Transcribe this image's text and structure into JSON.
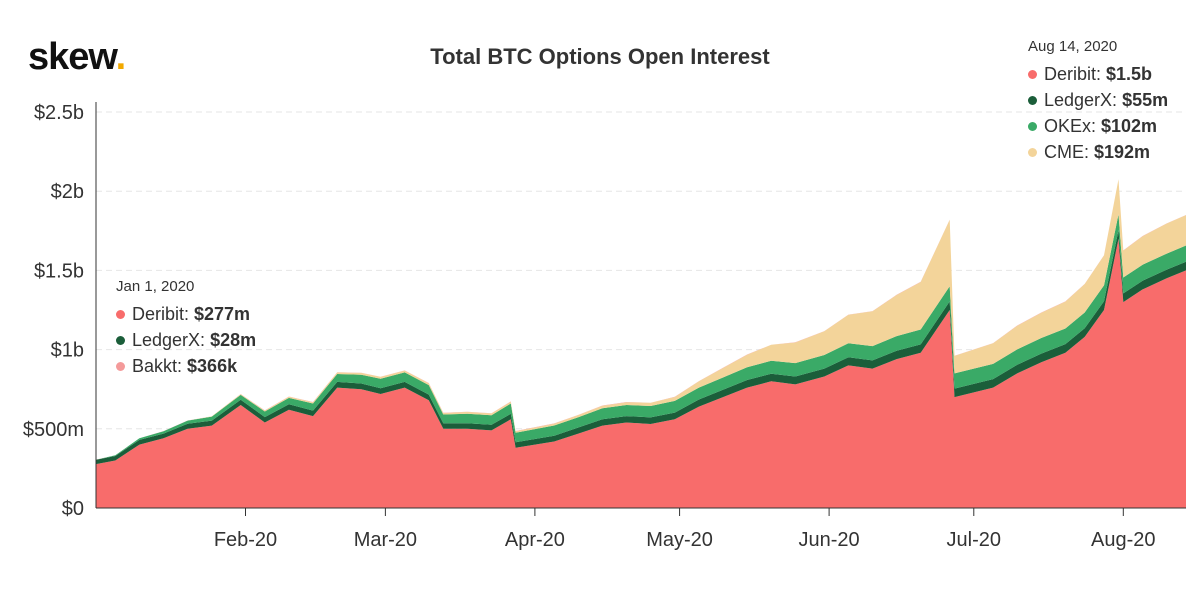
{
  "brand": {
    "name": "skew",
    "dot": "."
  },
  "chart_data": {
    "type": "area",
    "stacked": true,
    "title": "Total BTC Options Open Interest",
    "xlabel": "",
    "ylabel": "",
    "x_ticks": [
      "Feb-20",
      "Mar-20",
      "Apr-20",
      "May-20",
      "Jun-20",
      "Jul-20",
      "Aug-20"
    ],
    "x_tick_dates": [
      "2020-02-01",
      "2020-03-01",
      "2020-04-01",
      "2020-05-01",
      "2020-06-01",
      "2020-07-01",
      "2020-08-01"
    ],
    "x_range": [
      "2020-01-01",
      "2020-08-14"
    ],
    "y_ticks": [
      "$0",
      "$500m",
      "$1b",
      "$1.5b",
      "$2b",
      "$2.5b"
    ],
    "y_tick_values": [
      0,
      500,
      1000,
      1500,
      2000,
      2500
    ],
    "ylim": [
      0,
      2500
    ],
    "y_unit": "USD millions",
    "grid": true,
    "colors": {
      "Deribit": "#f86c6b",
      "LedgerX": "#1b5e3a",
      "OKEx": "#3aaa67",
      "CME": "#f3d49a",
      "Bakkt": "#f49a9a"
    },
    "x": [
      "2020-01-01",
      "2020-01-05",
      "2020-01-10",
      "2020-01-15",
      "2020-01-20",
      "2020-01-25",
      "2020-01-31",
      "2020-02-05",
      "2020-02-10",
      "2020-02-15",
      "2020-02-20",
      "2020-02-25",
      "2020-02-29",
      "2020-03-05",
      "2020-03-10",
      "2020-03-13",
      "2020-03-18",
      "2020-03-23",
      "2020-03-27",
      "2020-03-28",
      "2020-04-05",
      "2020-04-10",
      "2020-04-15",
      "2020-04-20",
      "2020-04-25",
      "2020-04-30",
      "2020-05-05",
      "2020-05-10",
      "2020-05-15",
      "2020-05-20",
      "2020-05-25",
      "2020-05-31",
      "2020-06-05",
      "2020-06-10",
      "2020-06-15",
      "2020-06-20",
      "2020-06-26",
      "2020-06-27",
      "2020-07-05",
      "2020-07-10",
      "2020-07-15",
      "2020-07-20",
      "2020-07-24",
      "2020-07-28",
      "2020-07-31",
      "2020-08-01",
      "2020-08-05",
      "2020-08-10",
      "2020-08-14"
    ],
    "series": [
      {
        "name": "Deribit",
        "values": [
          277,
          300,
          400,
          440,
          500,
          520,
          650,
          540,
          620,
          580,
          760,
          750,
          720,
          760,
          680,
          500,
          500,
          490,
          560,
          380,
          420,
          470,
          520,
          540,
          530,
          560,
          640,
          700,
          760,
          800,
          780,
          830,
          900,
          880,
          940,
          980,
          1250,
          700,
          760,
          850,
          920,
          980,
          1080,
          1250,
          1700,
          1300,
          1380,
          1450,
          1500
        ]
      },
      {
        "name": "LedgerX",
        "values": [
          28,
          28,
          30,
          30,
          32,
          32,
          34,
          34,
          35,
          35,
          36,
          36,
          36,
          36,
          36,
          35,
          35,
          35,
          35,
          35,
          36,
          38,
          40,
          40,
          42,
          42,
          45,
          46,
          48,
          48,
          50,
          50,
          52,
          52,
          53,
          53,
          54,
          54,
          54,
          54,
          55,
          55,
          55,
          55,
          55,
          55,
          55,
          55,
          55
        ]
      },
      {
        "name": "OKEx",
        "values": [
          0,
          5,
          10,
          15,
          20,
          25,
          30,
          35,
          40,
          45,
          50,
          55,
          60,
          60,
          60,
          55,
          60,
          60,
          65,
          60,
          65,
          65,
          70,
          70,
          72,
          74,
          75,
          78,
          80,
          82,
          85,
          86,
          88,
          90,
          92,
          94,
          96,
          96,
          96,
          97,
          98,
          98,
          99,
          100,
          100,
          100,
          101,
          101,
          102
        ]
      },
      {
        "name": "CME",
        "values": [
          0,
          0,
          0,
          0,
          0,
          2,
          5,
          6,
          8,
          8,
          10,
          12,
          12,
          12,
          12,
          10,
          12,
          12,
          12,
          10,
          12,
          14,
          16,
          18,
          20,
          25,
          40,
          60,
          80,
          100,
          130,
          150,
          180,
          220,
          260,
          300,
          420,
          110,
          130,
          150,
          160,
          170,
          180,
          190,
          220,
          170,
          180,
          190,
          192
        ]
      },
      {
        "name": "Bakkt",
        "values": [
          0.366,
          0.4,
          0.5,
          0.6,
          0.7,
          0.8,
          1,
          1,
          1,
          1,
          1,
          1,
          1,
          1,
          1,
          1,
          1,
          1,
          1,
          1,
          1,
          1,
          1,
          1,
          1,
          1,
          1,
          1,
          1,
          1,
          1,
          1,
          1,
          1,
          1,
          1,
          1,
          1,
          1,
          1,
          1,
          1,
          1,
          1,
          1,
          1,
          1,
          1,
          1
        ]
      }
    ],
    "callouts": [
      {
        "date": "Jan 1, 2020",
        "items": [
          {
            "name": "Deribit",
            "label": "Deribit:",
            "value": "$277m"
          },
          {
            "name": "LedgerX",
            "label": "LedgerX:",
            "value": "$28m"
          },
          {
            "name": "Bakkt",
            "label": "Bakkt:",
            "value": "$366k"
          }
        ]
      },
      {
        "date": "Aug 14, 2020",
        "items": [
          {
            "name": "Deribit",
            "label": "Deribit:",
            "value": "$1.5b"
          },
          {
            "name": "LedgerX",
            "label": "LedgerX:",
            "value": "$55m"
          },
          {
            "name": "OKEx",
            "label": "OKEx:",
            "value": "$102m"
          },
          {
            "name": "CME",
            "label": "CME:",
            "value": "$192m"
          }
        ]
      }
    ]
  }
}
